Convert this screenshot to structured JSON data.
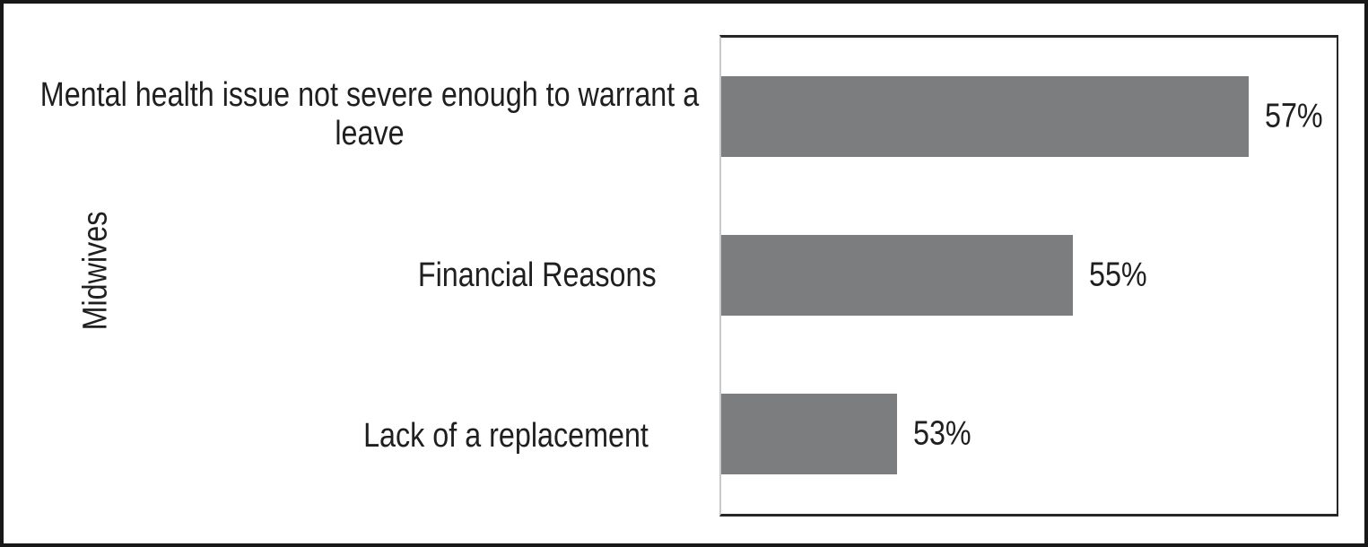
{
  "chart_data": {
    "type": "bar",
    "orientation": "horizontal",
    "title": "",
    "ylabel": "Midwives",
    "xlabel": "",
    "xlim": [
      51,
      58
    ],
    "grid": false,
    "legend": false,
    "bar_color": "#7b7d7e",
    "categories": [
      "Mental health issue not severe enough to warrant a\nleave",
      "Financial Reasons",
      "Lack of a replacement"
    ],
    "values": [
      57,
      55,
      53
    ],
    "data_labels": [
      "57%",
      "55%",
      "53%"
    ],
    "data_label_position": "outside-end"
  }
}
